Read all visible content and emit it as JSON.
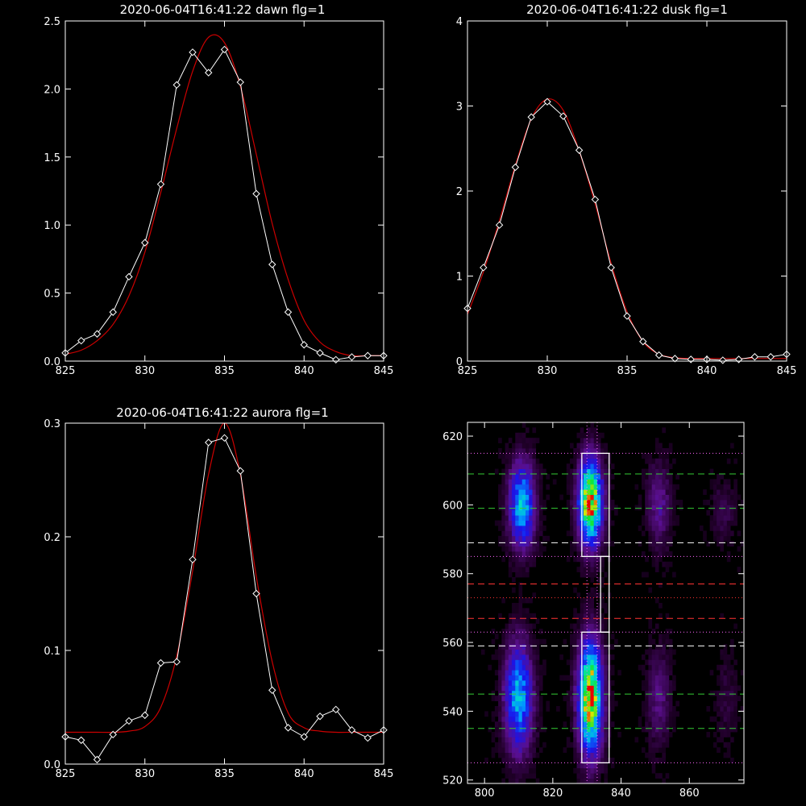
{
  "chart_data": [
    {
      "type": "line",
      "title": "2020-06-04T16:41:22 dawn flg=1",
      "xlabel": "",
      "ylabel": "",
      "xlim": [
        825,
        845
      ],
      "ylim": [
        0,
        2.5
      ],
      "xticks": [
        825,
        830,
        835,
        840,
        845
      ],
      "xtick_labels": [
        "825",
        "830",
        "835",
        "840",
        "845"
      ],
      "yticks": [
        0,
        0.5,
        1.0,
        1.5,
        2.0,
        2.5
      ],
      "ytick_labels": [
        "0.0",
        "0.5",
        "1.0",
        "1.5",
        "2.0",
        "2.5"
      ],
      "series": [
        {
          "x": [
            825,
            826,
            827,
            828,
            829,
            830,
            831,
            832,
            833,
            834,
            835,
            836,
            837,
            838,
            839,
            840,
            841,
            842,
            843,
            844,
            845
          ],
          "y": [
            0.06,
            0.15,
            0.2,
            0.36,
            0.62,
            0.87,
            1.3,
            2.03,
            2.27,
            2.12,
            2.29,
            2.05,
            1.23,
            0.71,
            0.36,
            0.12,
            0.06,
            0.01,
            0.03,
            0.04,
            0.04
          ],
          "color": "#ffffff",
          "marker": "diamond"
        },
        {
          "x": [
            825,
            826,
            827,
            828,
            829,
            830,
            831,
            832,
            833,
            834,
            835,
            836,
            837,
            838,
            839,
            840,
            841,
            842,
            843,
            844,
            845
          ],
          "y": [
            0.05,
            0.08,
            0.15,
            0.27,
            0.48,
            0.8,
            1.24,
            1.71,
            2.13,
            2.38,
            2.34,
            2.02,
            1.52,
            1.01,
            0.6,
            0.3,
            0.14,
            0.07,
            0.04,
            0.04,
            0.04
          ],
          "color": "#cc0000",
          "marker": "none",
          "smooth": true
        }
      ]
    },
    {
      "type": "line",
      "title": "2020-06-04T16:41:22 dusk flg=1",
      "xlabel": "",
      "ylabel": "",
      "xlim": [
        825,
        845
      ],
      "ylim": [
        0,
        4
      ],
      "xticks": [
        825,
        830,
        835,
        840,
        845
      ],
      "xtick_labels": [
        "825",
        "830",
        "835",
        "840",
        "845"
      ],
      "yticks": [
        0,
        1,
        2,
        3,
        4
      ],
      "ytick_labels": [
        "0",
        "1",
        "2",
        "3",
        "4"
      ],
      "series": [
        {
          "x": [
            825,
            826,
            827,
            828,
            829,
            830,
            831,
            832,
            833,
            834,
            835,
            836,
            837,
            838,
            839,
            840,
            841,
            842,
            843,
            844,
            845
          ],
          "y": [
            0.62,
            1.1,
            1.6,
            2.28,
            2.87,
            3.05,
            2.88,
            2.48,
            1.9,
            1.1,
            0.53,
            0.23,
            0.07,
            0.03,
            0.02,
            0.02,
            0.01,
            0.02,
            0.05,
            0.05,
            0.08
          ],
          "color": "#ffffff",
          "marker": "diamond"
        },
        {
          "x": [
            825,
            826,
            827,
            828,
            829,
            830,
            831,
            832,
            833,
            834,
            835,
            836,
            837,
            838,
            839,
            840,
            841,
            842,
            843,
            844,
            845
          ],
          "y": [
            0.55,
            1.05,
            1.65,
            2.3,
            2.85,
            3.08,
            2.95,
            2.47,
            1.85,
            1.15,
            0.58,
            0.23,
            0.08,
            0.04,
            0.03,
            0.03,
            0.03,
            0.03,
            0.03,
            0.03,
            0.03
          ],
          "color": "#cc0000",
          "marker": "none",
          "smooth": true
        }
      ]
    },
    {
      "type": "line",
      "title": "2020-06-04T16:41:22 aurora flg=1",
      "xlabel": "",
      "ylabel": "",
      "xlim": [
        825,
        845
      ],
      "ylim": [
        0,
        0.3
      ],
      "xticks": [
        825,
        830,
        835,
        840,
        845
      ],
      "xtick_labels": [
        "825",
        "830",
        "835",
        "840",
        "845"
      ],
      "yticks": [
        0,
        0.1,
        0.2,
        0.3
      ],
      "ytick_labels": [
        "0.0",
        "0.1",
        "0.2",
        "0.3"
      ],
      "series": [
        {
          "x": [
            825,
            826,
            827,
            828,
            829,
            830,
            831,
            832,
            833,
            834,
            835,
            836,
            837,
            838,
            839,
            840,
            841,
            842,
            843,
            844,
            845
          ],
          "y": [
            0.024,
            0.021,
            0.004,
            0.026,
            0.038,
            0.043,
            0.089,
            0.09,
            0.18,
            0.283,
            0.287,
            0.258,
            0.15,
            0.065,
            0.032,
            0.024,
            0.042,
            0.048,
            0.03,
            0.023,
            0.03
          ],
          "color": "#ffffff",
          "marker": "diamond"
        },
        {
          "x": [
            825,
            826,
            827,
            828,
            829,
            830,
            831,
            832,
            833,
            834,
            835,
            836,
            837,
            838,
            839,
            840,
            841,
            842,
            843,
            844,
            845
          ],
          "y": [
            0.028,
            0.028,
            0.028,
            0.028,
            0.029,
            0.033,
            0.05,
            0.095,
            0.17,
            0.255,
            0.3,
            0.255,
            0.165,
            0.09,
            0.045,
            0.032,
            0.029,
            0.028,
            0.028,
            0.028,
            0.028
          ],
          "color": "#cc0000",
          "marker": "none",
          "smooth": true
        }
      ]
    },
    {
      "type": "heatmap",
      "title": "",
      "xlabel": "",
      "ylabel": "",
      "xlim": [
        795,
        876
      ],
      "ylim": [
        519,
        624
      ],
      "xticks": [
        800,
        820,
        840,
        860
      ],
      "xtick_labels": [
        "800",
        "820",
        "840",
        "860"
      ],
      "yticks": [
        520,
        540,
        560,
        580,
        600,
        620
      ],
      "ytick_labels": [
        "520",
        "540",
        "560",
        "580",
        "600",
        "620"
      ],
      "colormap": "rainbow",
      "blobs": [
        {
          "x": 811,
          "y": 600,
          "sx": 2.6,
          "sy": 8.5,
          "amp": 0.62
        },
        {
          "x": 831,
          "y": 601,
          "sx": 2.4,
          "sy": 8.5,
          "amp": 1.0
        },
        {
          "x": 851,
          "y": 600,
          "sx": 2.4,
          "sy": 8.5,
          "amp": 0.22
        },
        {
          "x": 870,
          "y": 598,
          "sx": 2.4,
          "sy": 6.5,
          "amp": 0.1
        },
        {
          "x": 810,
          "y": 544,
          "sx": 2.8,
          "sy": 11,
          "amp": 0.6
        },
        {
          "x": 831,
          "y": 544,
          "sx": 2.4,
          "sy": 11,
          "amp": 1.0
        },
        {
          "x": 851,
          "y": 544,
          "sx": 2.4,
          "sy": 10,
          "amp": 0.18
        },
        {
          "x": 871,
          "y": 544,
          "sx": 2.4,
          "sy": 9,
          "amp": 0.08
        }
      ],
      "overlays": {
        "boxes": [
          {
            "x0": 828.5,
            "x1": 836.5,
            "y0": 585,
            "y1": 615,
            "color": "#ffffff"
          },
          {
            "x0": 828.5,
            "x1": 836.5,
            "y0": 525,
            "y1": 563,
            "color": "#ffffff"
          },
          {
            "x0": 834,
            "x1": 836.5,
            "y0": 563,
            "y1": 585,
            "color": "#ffffff"
          }
        ],
        "vlines": [
          {
            "x": 830,
            "color": "#ff66ff",
            "style": "dotted"
          },
          {
            "x": 833,
            "color": "#ff66ff",
            "style": "dotted"
          }
        ],
        "hlines": [
          {
            "y": 615,
            "color": "#ff66ff",
            "style": "dotted"
          },
          {
            "y": 609,
            "color": "#33cc33",
            "style": "dashed"
          },
          {
            "y": 599,
            "color": "#33cc33",
            "style": "dashed"
          },
          {
            "y": 589,
            "color": "#ffffff",
            "style": "dashed"
          },
          {
            "y": 585,
            "color": "#ff66ff",
            "style": "dotted"
          },
          {
            "y": 577,
            "color": "#ff3333",
            "style": "dashed"
          },
          {
            "y": 573,
            "color": "#ff3333",
            "style": "dotted"
          },
          {
            "y": 567,
            "color": "#ff3333",
            "style": "dashed"
          },
          {
            "y": 563,
            "color": "#ff66ff",
            "style": "dotted"
          },
          {
            "y": 559,
            "color": "#ffffff",
            "style": "dashed"
          },
          {
            "y": 545,
            "color": "#33cc33",
            "style": "dashed"
          },
          {
            "y": 535,
            "color": "#33cc33",
            "style": "dashed"
          },
          {
            "y": 525,
            "color": "#ff66ff",
            "style": "dotted"
          }
        ]
      }
    }
  ]
}
